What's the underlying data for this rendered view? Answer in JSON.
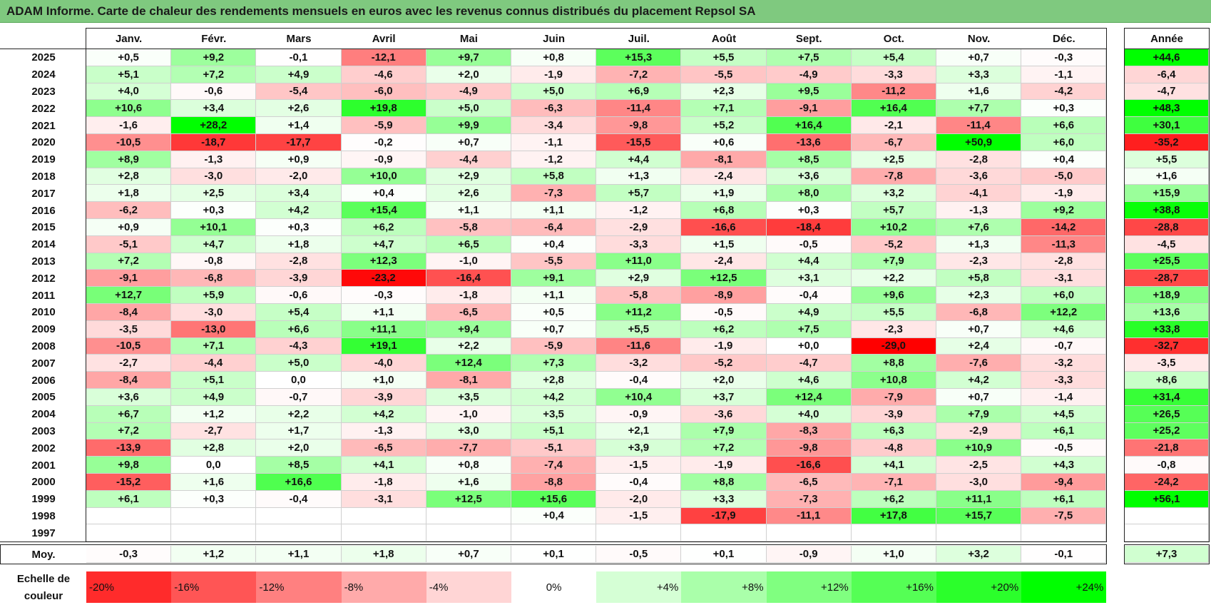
{
  "title": "ADAM Informe. Carte de chaleur des rendements mensuels en euros avec les revenus connus distribués du placement Repsol SA",
  "chart_data": {
    "type": "heatmap",
    "title": "ADAM Informe. Carte de chaleur des rendements mensuels en euros avec les revenus connus distribués du placement Repsol SA",
    "columns": [
      "Janv.",
      "Févr.",
      "Mars",
      "Avril",
      "Mai",
      "Juin",
      "Juil.",
      "Août",
      "Sept.",
      "Oct.",
      "Nov.",
      "Déc."
    ],
    "annual_label": "Année",
    "rows": [
      {
        "year": "2025",
        "values": [
          "+0,5",
          "+9,2",
          "-0,1",
          "-12,1",
          "+9,7",
          "+0,8",
          "+15,3",
          "+5,5",
          "+7,5",
          "+5,4",
          "+0,7",
          "-0,3"
        ],
        "annual": "+44,6"
      },
      {
        "year": "2024",
        "values": [
          "+5,1",
          "+7,2",
          "+4,9",
          "-4,6",
          "+2,0",
          "-1,9",
          "-7,2",
          "-5,5",
          "-4,9",
          "-3,3",
          "+3,3",
          "-1,1"
        ],
        "annual": "-6,4"
      },
      {
        "year": "2023",
        "values": [
          "+4,0",
          "-0,6",
          "-5,4",
          "-6,0",
          "-4,9",
          "+5,0",
          "+6,9",
          "+2,3",
          "+9,5",
          "-11,2",
          "+1,6",
          "-4,2"
        ],
        "annual": "-4,7"
      },
      {
        "year": "2022",
        "values": [
          "+10,6",
          "+3,4",
          "+2,6",
          "+19,8",
          "+5,0",
          "-6,3",
          "-11,4",
          "+7,1",
          "-9,1",
          "+16,4",
          "+7,7",
          "+0,3"
        ],
        "annual": "+48,3"
      },
      {
        "year": "2021",
        "values": [
          "-1,6",
          "+28,2",
          "+1,4",
          "-5,9",
          "+9,9",
          "-3,4",
          "-9,8",
          "+5,2",
          "+16,4",
          "-2,1",
          "-11,4",
          "+6,6"
        ],
        "annual": "+30,1"
      },
      {
        "year": "2020",
        "values": [
          "-10,5",
          "-18,7",
          "-17,7",
          "-0,2",
          "+0,7",
          "-1,1",
          "-15,5",
          "+0,6",
          "-13,6",
          "-6,7",
          "+50,9",
          "+6,0"
        ],
        "annual": "-35,2"
      },
      {
        "year": "2019",
        "values": [
          "+8,9",
          "-1,3",
          "+0,9",
          "-0,9",
          "-4,4",
          "-1,2",
          "+4,4",
          "-8,1",
          "+8,5",
          "+2,5",
          "-2,8",
          "+0,4"
        ],
        "annual": "+5,5"
      },
      {
        "year": "2018",
        "values": [
          "+2,8",
          "-3,0",
          "-2,0",
          "+10,0",
          "+2,9",
          "+5,8",
          "+1,3",
          "-2,4",
          "+3,6",
          "-7,8",
          "-3,6",
          "-5,0"
        ],
        "annual": "+1,6"
      },
      {
        "year": "2017",
        "values": [
          "+1,8",
          "+2,5",
          "+3,4",
          "+0,4",
          "+2,6",
          "-7,3",
          "+5,7",
          "+1,9",
          "+8,0",
          "+3,2",
          "-4,1",
          "-1,9"
        ],
        "annual": "+15,9"
      },
      {
        "year": "2016",
        "values": [
          "-6,2",
          "+0,3",
          "+4,2",
          "+15,4",
          "+1,1",
          "+1,1",
          "-1,2",
          "+6,8",
          "+0,3",
          "+5,7",
          "-1,3",
          "+9,2"
        ],
        "annual": "+38,8"
      },
      {
        "year": "2015",
        "values": [
          "+0,9",
          "+10,1",
          "+0,3",
          "+6,2",
          "-5,8",
          "-6,4",
          "-2,9",
          "-16,6",
          "-18,4",
          "+10,2",
          "+7,6",
          "-14,2"
        ],
        "annual": "-28,8"
      },
      {
        "year": "2014",
        "values": [
          "-5,1",
          "+4,7",
          "+1,8",
          "+4,7",
          "+6,5",
          "+0,4",
          "-3,3",
          "+1,5",
          "-0,5",
          "-5,2",
          "+1,3",
          "-11,3"
        ],
        "annual": "-4,5"
      },
      {
        "year": "2013",
        "values": [
          "+7,2",
          "-0,8",
          "-2,8",
          "+12,3",
          "-1,0",
          "-5,5",
          "+11,0",
          "-2,4",
          "+4,4",
          "+7,9",
          "-2,3",
          "-2,8"
        ],
        "annual": "+25,5"
      },
      {
        "year": "2012",
        "values": [
          "-9,1",
          "-6,8",
          "-3,9",
          "-23,2",
          "-16,4",
          "+9,1",
          "+2,9",
          "+12,5",
          "+3,1",
          "+2,2",
          "+5,8",
          "-3,1"
        ],
        "annual": "-28,7"
      },
      {
        "year": "2011",
        "values": [
          "+12,7",
          "+5,9",
          "-0,6",
          "-0,3",
          "-1,8",
          "+1,1",
          "-5,8",
          "-8,9",
          "-0,4",
          "+9,6",
          "+2,3",
          "+6,0"
        ],
        "annual": "+18,9"
      },
      {
        "year": "2010",
        "values": [
          "-8,4",
          "-3,0",
          "+5,4",
          "+1,1",
          "-6,5",
          "+0,5",
          "+11,2",
          "-0,5",
          "+4,9",
          "+5,5",
          "-6,8",
          "+12,2"
        ],
        "annual": "+13,6"
      },
      {
        "year": "2009",
        "values": [
          "-3,5",
          "-13,0",
          "+6,6",
          "+11,1",
          "+9,4",
          "+0,7",
          "+5,5",
          "+6,2",
          "+7,5",
          "-2,3",
          "+0,7",
          "+4,6"
        ],
        "annual": "+33,8"
      },
      {
        "year": "2008",
        "values": [
          "-10,5",
          "+7,1",
          "-4,3",
          "+19,1",
          "+2,2",
          "-5,9",
          "-11,6",
          "-1,9",
          "+0,0",
          "-29,0",
          "+2,4",
          "-0,7"
        ],
        "annual": "-32,7"
      },
      {
        "year": "2007",
        "values": [
          "-2,7",
          "-4,4",
          "+5,0",
          "-4,0",
          "+12,4",
          "+7,3",
          "-3,2",
          "-5,2",
          "-4,7",
          "+8,8",
          "-7,6",
          "-3,2"
        ],
        "annual": "-3,5"
      },
      {
        "year": "2006",
        "values": [
          "-8,4",
          "+5,1",
          "0,0",
          "+1,0",
          "-8,1",
          "+2,8",
          "-0,4",
          "+2,0",
          "+4,6",
          "+10,8",
          "+4,2",
          "-3,3"
        ],
        "annual": "+8,6"
      },
      {
        "year": "2005",
        "values": [
          "+3,6",
          "+4,9",
          "-0,7",
          "-3,9",
          "+3,5",
          "+4,2",
          "+10,4",
          "+3,7",
          "+12,4",
          "-7,9",
          "+0,7",
          "-1,4"
        ],
        "annual": "+31,4"
      },
      {
        "year": "2004",
        "values": [
          "+6,7",
          "+1,2",
          "+2,2",
          "+4,2",
          "-1,0",
          "+3,5",
          "-0,9",
          "-3,6",
          "+4,0",
          "-3,9",
          "+7,9",
          "+4,5"
        ],
        "annual": "+26,5"
      },
      {
        "year": "2003",
        "values": [
          "+7,2",
          "-2,7",
          "+1,7",
          "-1,3",
          "+3,0",
          "+5,1",
          "+2,1",
          "+7,9",
          "-8,3",
          "+6,3",
          "-2,9",
          "+6,1"
        ],
        "annual": "+25,2"
      },
      {
        "year": "2002",
        "values": [
          "-13,9",
          "+2,8",
          "+2,0",
          "-6,5",
          "-7,7",
          "-5,1",
          "+3,9",
          "+7,2",
          "-9,8",
          "-4,8",
          "+10,9",
          "-0,5"
        ],
        "annual": "-21,8"
      },
      {
        "year": "2001",
        "values": [
          "+9,8",
          "0,0",
          "+8,5",
          "+4,1",
          "+0,8",
          "-7,4",
          "-1,5",
          "-1,9",
          "-16,6",
          "+4,1",
          "-2,5",
          "+4,3"
        ],
        "annual": "-0,8"
      },
      {
        "year": "2000",
        "values": [
          "-15,2",
          "+1,6",
          "+16,6",
          "-1,8",
          "+1,6",
          "-8,8",
          "-0,4",
          "+8,8",
          "-6,5",
          "-7,1",
          "-3,0",
          "-9,4"
        ],
        "annual": "-24,2"
      },
      {
        "year": "1999",
        "values": [
          "+6,1",
          "+0,3",
          "-0,4",
          "-3,1",
          "+12,5",
          "+15,6",
          "-2,0",
          "+3,3",
          "-7,3",
          "+6,2",
          "+11,1",
          "+6,1"
        ],
        "annual": "+56,1"
      },
      {
        "year": "1998",
        "values": [
          "",
          "",
          "",
          "",
          "",
          "+0,4",
          "-1,5",
          "-17,9",
          "-11,1",
          "+17,8",
          "+15,7",
          "-7,5"
        ],
        "annual": ""
      },
      {
        "year": "1997",
        "values": [
          "",
          "",
          "",
          "",
          "",
          "",
          "",
          "",
          "",
          "",
          "",
          ""
        ],
        "annual": ""
      }
    ],
    "average": {
      "label": "Moy.",
      "values": [
        "-0,3",
        "+1,2",
        "+1,1",
        "+1,8",
        "+0,7",
        "+0,1",
        "-0,5",
        "+0,1",
        "-0,9",
        "+1,0",
        "+3,2",
        "-0,1"
      ],
      "annual": "+7,3"
    },
    "scale": {
      "label_line1": "Echelle de",
      "label_line2": "couleur",
      "stops": [
        "-20%",
        "-16%",
        "-12%",
        "-8%",
        "-4%",
        "0%",
        "+4%",
        "+8%",
        "+12%",
        "+16%",
        "+20%",
        "+24%"
      ],
      "stop_values": [
        -20,
        -16,
        -12,
        -8,
        -4,
        0,
        4,
        8,
        12,
        16,
        20,
        24
      ]
    },
    "colors": {
      "negative": "#ff0000",
      "neutral": "#ffffff",
      "positive": "#00ff00"
    }
  }
}
